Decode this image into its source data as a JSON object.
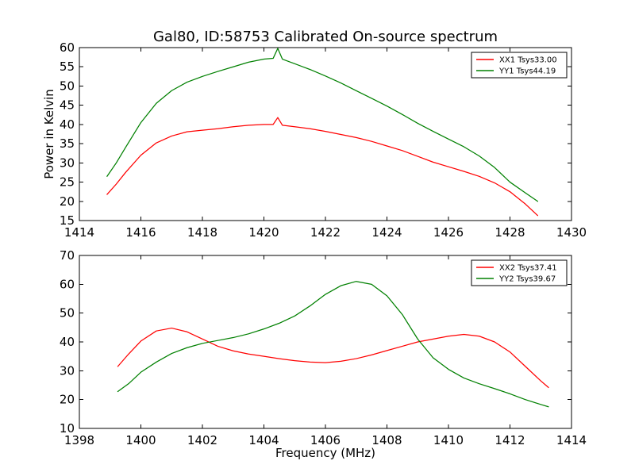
{
  "chart_data": [
    {
      "type": "line",
      "title": "Gal80, ID:58753 Calibrated On-source spectrum",
      "xlabel": "",
      "ylabel": "Power in Kelvin",
      "xlim": [
        1414,
        1430
      ],
      "ylim": [
        15,
        60
      ],
      "xticks": [
        "1414",
        "1416",
        "1418",
        "1420",
        "1422",
        "1424",
        "1426",
        "1428",
        "1430"
      ],
      "yticks": [
        "15",
        "20",
        "25",
        "30",
        "35",
        "40",
        "45",
        "50",
        "55",
        "60"
      ],
      "grid": false,
      "legend_position": "top-right",
      "series": [
        {
          "name": "XX1 Tsys33.00",
          "color": "#ff0000",
          "x": [
            1414.9,
            1415.2,
            1415.5,
            1416.0,
            1416.5,
            1417.0,
            1417.5,
            1418.0,
            1418.5,
            1419.0,
            1419.5,
            1420.0,
            1420.3,
            1420.45,
            1420.6,
            1421.0,
            1421.5,
            1422.0,
            1422.5,
            1423.0,
            1423.5,
            1424.0,
            1424.5,
            1425.0,
            1425.5,
            1426.0,
            1426.5,
            1427.0,
            1427.5,
            1428.0,
            1428.5,
            1428.9
          ],
          "y": [
            21.8,
            24.5,
            27.5,
            32.0,
            35.2,
            37.0,
            38.1,
            38.5,
            38.9,
            39.4,
            39.8,
            40.0,
            40.0,
            41.8,
            39.8,
            39.4,
            38.9,
            38.2,
            37.4,
            36.6,
            35.6,
            34.4,
            33.2,
            31.7,
            30.2,
            29.0,
            27.8,
            26.5,
            24.8,
            22.5,
            19.3,
            16.3
          ]
        },
        {
          "name": "YY1 Tsys44.19",
          "color": "#008000",
          "x": [
            1414.9,
            1415.2,
            1415.5,
            1416.0,
            1416.5,
            1417.0,
            1417.5,
            1418.0,
            1418.5,
            1419.0,
            1419.5,
            1420.0,
            1420.3,
            1420.45,
            1420.6,
            1421.0,
            1421.5,
            1422.0,
            1422.5,
            1423.0,
            1423.5,
            1424.0,
            1424.5,
            1425.0,
            1425.5,
            1426.0,
            1426.5,
            1427.0,
            1427.5,
            1428.0,
            1428.5,
            1428.9
          ],
          "y": [
            26.5,
            30.0,
            34.0,
            40.5,
            45.5,
            48.8,
            51.0,
            52.5,
            53.8,
            55.0,
            56.2,
            57.0,
            57.2,
            59.8,
            57.0,
            55.8,
            54.3,
            52.6,
            50.8,
            48.8,
            46.8,
            44.8,
            42.6,
            40.3,
            38.2,
            36.2,
            34.2,
            31.8,
            28.8,
            25.0,
            22.2,
            20.0
          ]
        }
      ]
    },
    {
      "type": "line",
      "title": "",
      "xlabel": "Frequency (MHz)",
      "ylabel": "",
      "xlim": [
        1398,
        1414
      ],
      "ylim": [
        10,
        70
      ],
      "xticks": [
        "1398",
        "1400",
        "1402",
        "1404",
        "1406",
        "1408",
        "1410",
        "1412",
        "1414"
      ],
      "yticks": [
        "10",
        "20",
        "30",
        "40",
        "50",
        "60",
        "70"
      ],
      "grid": false,
      "legend_position": "top-right",
      "series": [
        {
          "name": "XX2 Tsys37.41",
          "color": "#ff0000",
          "x": [
            1399.25,
            1399.6,
            1400.0,
            1400.5,
            1401.0,
            1401.5,
            1402.0,
            1402.5,
            1403.0,
            1403.5,
            1404.0,
            1404.5,
            1405.0,
            1405.5,
            1406.0,
            1406.5,
            1407.0,
            1407.5,
            1408.0,
            1408.5,
            1409.0,
            1409.5,
            1410.0,
            1410.5,
            1411.0,
            1411.5,
            1412.0,
            1412.5,
            1413.0,
            1413.25
          ],
          "y": [
            31.5,
            35.8,
            40.3,
            43.8,
            44.8,
            43.5,
            41.0,
            38.5,
            36.9,
            35.8,
            35.0,
            34.2,
            33.5,
            33.0,
            32.8,
            33.3,
            34.2,
            35.5,
            37.0,
            38.5,
            40.0,
            41.0,
            42.0,
            42.6,
            42.0,
            40.0,
            36.5,
            31.5,
            26.5,
            24.2
          ]
        },
        {
          "name": "YY2 Tsys39.67",
          "color": "#008000",
          "x": [
            1399.25,
            1399.6,
            1400.0,
            1400.5,
            1401.0,
            1401.5,
            1402.0,
            1402.5,
            1403.0,
            1403.5,
            1404.0,
            1404.5,
            1405.0,
            1405.5,
            1406.0,
            1406.5,
            1407.0,
            1407.5,
            1408.0,
            1408.5,
            1409.0,
            1409.5,
            1410.0,
            1410.5,
            1411.0,
            1411.5,
            1412.0,
            1412.5,
            1413.0,
            1413.25
          ],
          "y": [
            22.8,
            25.5,
            29.5,
            33.0,
            36.0,
            38.0,
            39.5,
            40.5,
            41.5,
            42.8,
            44.5,
            46.5,
            49.0,
            52.5,
            56.5,
            59.5,
            61.0,
            60.0,
            56.0,
            49.5,
            41.0,
            34.5,
            30.5,
            27.5,
            25.5,
            23.8,
            22.0,
            20.0,
            18.3,
            17.5
          ]
        }
      ]
    }
  ]
}
